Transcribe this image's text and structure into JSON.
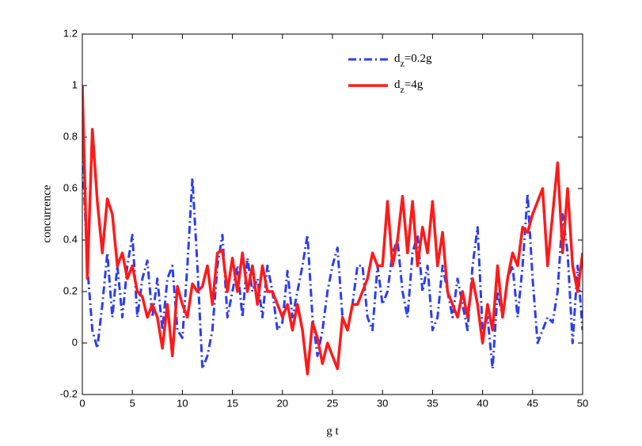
{
  "chart_data": {
    "type": "line",
    "x_label": "g t",
    "y_label": "concurrence",
    "x": [
      0,
      0.5,
      1,
      1.5,
      2,
      2.5,
      3,
      3.5,
      4,
      4.5,
      5,
      5.5,
      6,
      6.5,
      7,
      7.5,
      8,
      8.5,
      9,
      9.5,
      10,
      10.5,
      11,
      11.5,
      12,
      12.5,
      13,
      13.5,
      14,
      14.5,
      15,
      15.5,
      16,
      16.5,
      17,
      17.5,
      18,
      18.5,
      19,
      19.5,
      20,
      20.5,
      21,
      21.5,
      22,
      22.5,
      23,
      23.5,
      24,
      24.5,
      25,
      25.5,
      26,
      26.5,
      27,
      27.5,
      28,
      28.5,
      29,
      29.5,
      30,
      30.5,
      31,
      31.5,
      32,
      32.5,
      33,
      33.5,
      34,
      34.5,
      35,
      35.5,
      36,
      36.5,
      37,
      37.5,
      38,
      38.5,
      39,
      39.5,
      40,
      40.5,
      41,
      41.5,
      42,
      42.5,
      43,
      43.5,
      44,
      44.5,
      45,
      45.5,
      46,
      46.5,
      47,
      47.5,
      48,
      48.5,
      49,
      49.5,
      50
    ],
    "series": [
      {
        "name": "dz=0.2g",
        "color": "#2b3ef0",
        "values": [
          0.75,
          0.3,
          0.05,
          -0.02,
          0.15,
          0.35,
          0.1,
          0.3,
          0.1,
          0.3,
          0.42,
          0.1,
          0.25,
          0.32,
          0.1,
          0.25,
          0.05,
          0.25,
          0.3,
          0.05,
          0.02,
          0.3,
          0.64,
          0.3,
          -0.1,
          -0.05,
          0.05,
          0.3,
          0.42,
          0.1,
          0.2,
          0.3,
          0.1,
          0.33,
          0.2,
          0.25,
          0.1,
          0.3,
          0.2,
          0.05,
          0.08,
          0.28,
          0.1,
          0.2,
          0.3,
          0.42,
          0.1,
          -0.05,
          0.05,
          0.2,
          0.3,
          0.37,
          0.1,
          0.05,
          0.15,
          0.3,
          0.3,
          0.1,
          0.05,
          0.3,
          0.15,
          0.2,
          0.35,
          0.4,
          0.2,
          0.1,
          0.35,
          0.42,
          0.2,
          0.3,
          0.05,
          0.1,
          0.3,
          0.2,
          0.1,
          0.25,
          0.15,
          0.05,
          0.3,
          0.45,
          0.05,
          0.1,
          -0.1,
          0.2,
          0.1,
          0.25,
          0.3,
          0.1,
          0.3,
          0.58,
          0.25,
          0.0,
          0.05,
          0.1,
          0.08,
          0.2,
          0.5,
          0.35,
          0.0,
          0.3,
          0.05
        ]
      },
      {
        "name": "dz=4g",
        "color": "#ff1a1a",
        "values": [
          1.0,
          0.25,
          0.83,
          0.55,
          0.35,
          0.56,
          0.5,
          0.3,
          0.35,
          0.25,
          0.3,
          0.2,
          0.18,
          0.1,
          0.15,
          0.1,
          -0.02,
          0.15,
          -0.05,
          0.22,
          0.15,
          0.1,
          0.23,
          0.2,
          0.22,
          0.3,
          0.15,
          0.35,
          0.36,
          0.2,
          0.33,
          0.2,
          0.35,
          0.2,
          0.3,
          0.15,
          0.3,
          0.2,
          0.2,
          0.15,
          0.1,
          0.15,
          0.05,
          0.15,
          0.05,
          -0.12,
          0.08,
          0.02,
          -0.08,
          0.0,
          -0.05,
          -0.1,
          0.1,
          0.05,
          0.15,
          0.15,
          0.2,
          0.25,
          0.35,
          0.3,
          0.3,
          0.55,
          0.3,
          0.4,
          0.57,
          0.35,
          0.55,
          0.3,
          0.45,
          0.35,
          0.55,
          0.3,
          0.43,
          0.2,
          0.15,
          0.1,
          0.2,
          0.1,
          0.25,
          0.15,
          0.0,
          0.15,
          0.05,
          0.3,
          0.1,
          0.25,
          0.35,
          0.3,
          0.45,
          0.43,
          0.5,
          0.55,
          0.6,
          0.3,
          0.5,
          0.7,
          0.35,
          0.6,
          0.3,
          0.2,
          0.35
        ]
      }
    ],
    "xlim": [
      0,
      50
    ],
    "xticks": [
      0,
      5,
      10,
      15,
      20,
      25,
      30,
      35,
      40,
      45,
      50
    ],
    "ylim": [
      -0.2,
      1.2
    ],
    "yticks": [
      -0.2,
      0,
      0.2,
      0.4,
      0.6,
      0.8,
      1,
      1.2
    ],
    "grid": false,
    "legend": "top"
  }
}
